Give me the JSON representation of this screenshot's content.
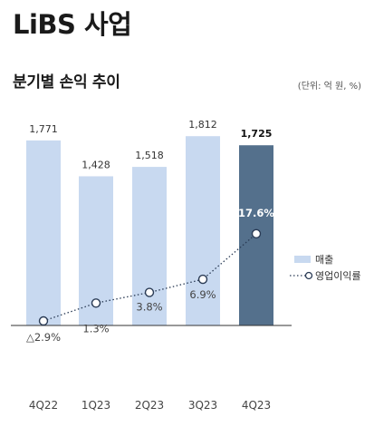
{
  "header": {
    "title": "LiBS 사업",
    "subtitle": "분기별 손익 추이",
    "unit": "(단위: 억 원, %)"
  },
  "colors": {
    "bar": "#c8d9f0",
    "bar_highlight": "#54708c",
    "line": "#2a3b55",
    "marker_fill": "#ffffff"
  },
  "chart_data": {
    "type": "bar",
    "categories": [
      "4Q22",
      "1Q23",
      "2Q23",
      "3Q23",
      "4Q23"
    ],
    "series": [
      {
        "name": "매출",
        "type": "bar",
        "values": [
          1771,
          1428,
          1518,
          1812,
          1725
        ],
        "labels": [
          "1,771",
          "1,428",
          "1,518",
          "1,812",
          "1,725"
        ],
        "highlight_index": 4
      },
      {
        "name": "영업이익률",
        "type": "line",
        "values": [
          -2.9,
          1.3,
          3.8,
          6.9,
          17.6
        ],
        "labels": [
          "△2.9%",
          "1.3%",
          "3.8%",
          "6.9%",
          "17.6%"
        ]
      }
    ],
    "legend": [
      "매출",
      "영업이익률"
    ],
    "legend_position": "right",
    "grid": false
  }
}
